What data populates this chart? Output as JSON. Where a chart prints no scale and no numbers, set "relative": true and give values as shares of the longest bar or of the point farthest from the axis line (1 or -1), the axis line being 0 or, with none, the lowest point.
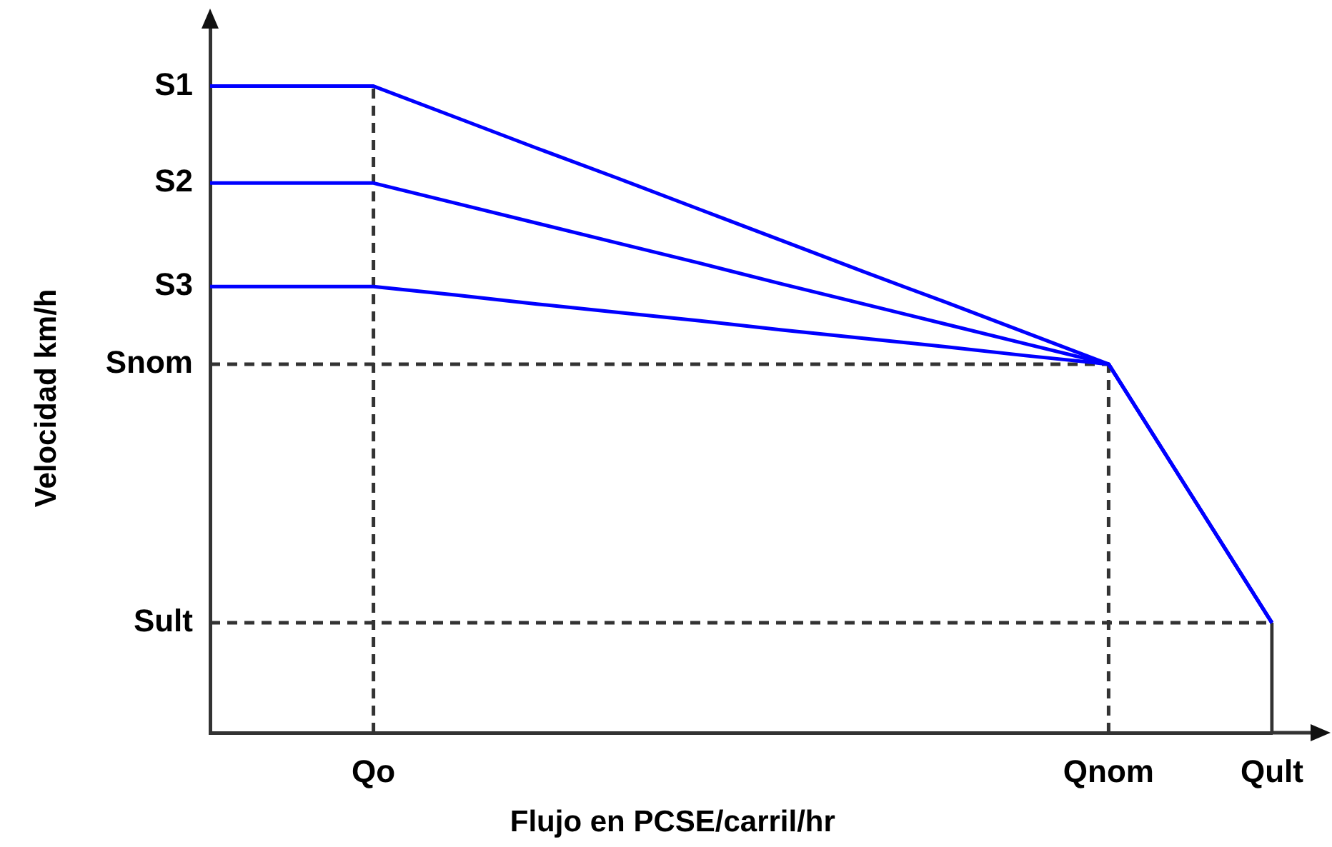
{
  "chart_data": {
    "type": "line",
    "relative": true,
    "xlabel": "Flujo en PCSE/carril/hr",
    "ylabel": "Velocidad km/h",
    "categories": [
      null,
      null,
      "Qo",
      null,
      null,
      null,
      null,
      null,
      null,
      null,
      null,
      "Qnom",
      null,
      "Qult"
    ],
    "series": [
      {
        "x": [
          "Qo",
          "Qo"
        ],
        "values": [
          0,
          1
        ],
        "color": "#333333",
        "line_style": "dashed"
      },
      {
        "name": "Snom",
        "values": [
          0.57,
          0.57,
          0.57,
          0.57,
          0.57,
          0.57,
          0.57,
          0.57,
          0.57,
          0.57,
          0.57,
          0.57,
          null,
          null
        ],
        "color": "#333333",
        "line_style": "dashed"
      },
      {
        "x": [
          "Qnom",
          "Qnom"
        ],
        "values": [
          0,
          0.57
        ],
        "color": "#333333",
        "line_style": "dashed"
      },
      {
        "name": "Sult",
        "values": [
          0.17,
          0.17,
          0.17,
          0.17,
          0.17,
          0.17,
          0.17,
          0.17,
          0.17,
          0.17,
          0.17,
          0.17,
          0.17,
          0.17
        ],
        "color": "#333333",
        "line_style": "dashed"
      },
      {
        "x": [
          "Qult",
          "Qult"
        ],
        "values": [
          0,
          0.17
        ],
        "color": "#333333",
        "line_style": "solid"
      },
      {
        "name": "S1",
        "values": [
          1,
          1,
          1,
          0.952,
          0.904,
          0.857,
          0.809,
          0.761,
          0.713,
          0.666,
          0.618,
          0.57,
          0.37,
          0.17
        ],
        "color": "#0000ff",
        "line_style": "solid"
      },
      {
        "name": "S2",
        "values": [
          0.85,
          0.85,
          0.85,
          0.819,
          0.788,
          0.757,
          0.726,
          0.694,
          0.663,
          0.632,
          0.601,
          0.57,
          0.37,
          0.17
        ],
        "color": "#0000ff",
        "line_style": "solid"
      },
      {
        "name": "S3",
        "values": [
          0.69,
          0.69,
          0.69,
          0.677,
          0.663,
          0.65,
          0.637,
          0.623,
          0.61,
          0.597,
          0.583,
          0.57,
          0.37,
          0.17
        ],
        "color": "#0000ff",
        "line_style": "solid"
      }
    ],
    "legend": false,
    "marker": "none"
  }
}
